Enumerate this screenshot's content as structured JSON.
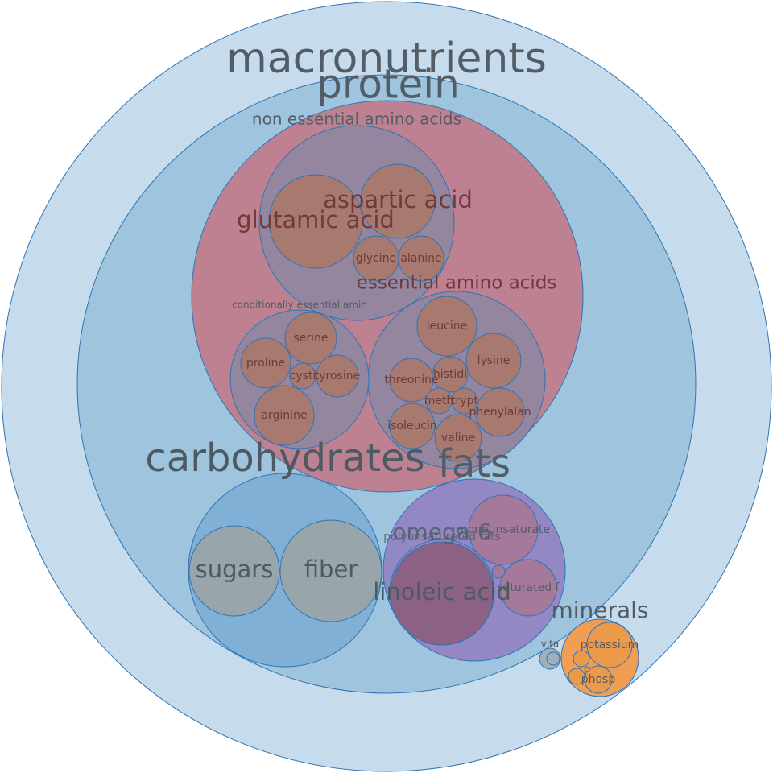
{
  "colors": {
    "macronutrients": "#c6dcec",
    "protein": "#9ec4de",
    "amino": "#bd8191",
    "amino_group": "#94869f",
    "amino_leaf": "#a8796f",
    "carbohydrates": "#80b0d5",
    "carb_leaf": "#98a5aa",
    "fats": "#9488c4",
    "fat_leaf": "#a5799a",
    "linoleic": "#8b6284",
    "minerals": "#ef9e54",
    "mineral_leaf": "#ec9a4a",
    "vitamins": "#9fb0bd",
    "stroke": "#2f74b5",
    "label_dark": "#4d5a63",
    "label_mid": "#535d68",
    "label_amino": "#6e3a3a"
  },
  "nodes": [
    {
      "id": "macronutrients",
      "label": "macronutrients",
      "color": "macronutrients"
    },
    {
      "id": "protein",
      "label": "protein",
      "color": "protein"
    },
    {
      "id": "amino-acids",
      "label": "",
      "color": "amino"
    },
    {
      "id": "non-essential-amino-acids",
      "label": "non essential amino acids",
      "color": "amino_group"
    },
    {
      "id": "aspartic-acid",
      "label": "aspartic acid",
      "color": "amino_leaf"
    },
    {
      "id": "glutamic-acid",
      "label": "glutamic acid",
      "color": "amino_leaf"
    },
    {
      "id": "glycine",
      "label": "glycine",
      "color": "amino_leaf"
    },
    {
      "id": "alanine",
      "label": "alanine",
      "color": "amino_leaf"
    },
    {
      "id": "essential-amino-acids",
      "label": "essential amino acids",
      "color": "amino_group"
    },
    {
      "id": "leucine",
      "label": "leucine",
      "color": "amino_leaf"
    },
    {
      "id": "lysine",
      "label": "lysine",
      "color": "amino_leaf"
    },
    {
      "id": "threonine",
      "label": "threonine",
      "color": "amino_leaf"
    },
    {
      "id": "histidine",
      "label": "histidi",
      "color": "amino_leaf"
    },
    {
      "id": "methionine",
      "label": "meth",
      "color": "amino_leaf"
    },
    {
      "id": "tryptophan",
      "label": "trypt",
      "color": "amino_leaf"
    },
    {
      "id": "phenylalanine",
      "label": "phenylalan",
      "color": "amino_leaf"
    },
    {
      "id": "isoleucine",
      "label": "isoleucin",
      "color": "amino_leaf"
    },
    {
      "id": "valine",
      "label": "valine",
      "color": "amino_leaf"
    },
    {
      "id": "conditionally-essential-amino-acids",
      "label": "conditionally essential amin",
      "color": "amino_group"
    },
    {
      "id": "serine",
      "label": "serine",
      "color": "amino_leaf"
    },
    {
      "id": "proline",
      "label": "proline",
      "color": "amino_leaf"
    },
    {
      "id": "cystine",
      "label": "cysti",
      "color": "amino_leaf"
    },
    {
      "id": "tyrosine",
      "label": "tyrosine",
      "color": "amino_leaf"
    },
    {
      "id": "arginine",
      "label": "arginine",
      "color": "amino_leaf"
    },
    {
      "id": "carbohydrates",
      "label": "carbohydrates",
      "color": "carbohydrates"
    },
    {
      "id": "sugars",
      "label": "sugars",
      "color": "carb_leaf"
    },
    {
      "id": "fiber",
      "label": "fiber",
      "color": "carb_leaf"
    },
    {
      "id": "fats",
      "label": "fats",
      "color": "fats"
    },
    {
      "id": "monounsaturated-fats",
      "label": "monounsaturate",
      "color": "fat_leaf"
    },
    {
      "id": "saturated-fats",
      "label": "saturated f",
      "color": "fat_leaf"
    },
    {
      "id": "polyunsaturated-fats",
      "label": "polyunsaturated fats",
      "color": "fats"
    },
    {
      "id": "omega-6",
      "label": "omega 6",
      "color": "fats"
    },
    {
      "id": "linoleic-acid",
      "label": "linoleic acid",
      "color": "linoleic"
    },
    {
      "id": "omega-3",
      "label": "",
      "color": "fat_leaf"
    },
    {
      "id": "minerals",
      "label": "minerals",
      "color": "minerals"
    },
    {
      "id": "potassium",
      "label": "potassium",
      "color": "mineral_leaf"
    },
    {
      "id": "phosphorus",
      "label": "phosp",
      "color": "mineral_leaf"
    },
    {
      "id": "calcium",
      "label": "",
      "color": "mineral_leaf"
    },
    {
      "id": "magnesium",
      "label": "",
      "color": "mineral_leaf"
    },
    {
      "id": "iron",
      "label": "",
      "color": "mineral_leaf"
    },
    {
      "id": "vitamins",
      "label": "vita",
      "color": "vitamins"
    },
    {
      "id": "vitamin-leaf",
      "label": "",
      "color": "vitamins"
    }
  ]
}
